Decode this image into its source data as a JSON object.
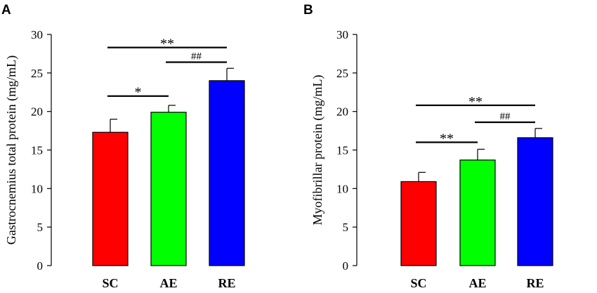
{
  "chart_data": [
    {
      "panel": "A",
      "type": "bar",
      "ylabel": "Gastrocnemius total protein (mg/mL)",
      "xlabel": "",
      "ylim": [
        0,
        30
      ],
      "yticks": [
        0,
        5,
        10,
        15,
        20,
        25,
        30
      ],
      "categories": [
        "SC",
        "AE",
        "RE"
      ],
      "values": [
        17.3,
        19.9,
        24.0
      ],
      "errors": [
        1.7,
        0.9,
        1.6
      ],
      "colors": [
        "#ff0000",
        "#00ff00",
        "#0000ff"
      ],
      "significance": [
        {
          "from": "SC",
          "to": "AE",
          "label": "*",
          "y": 22
        },
        {
          "from": "AE",
          "to": "RE",
          "label": "##",
          "y": 26.4
        },
        {
          "from": "SC",
          "to": "RE",
          "label": "**",
          "y": 28.3
        }
      ]
    },
    {
      "panel": "B",
      "type": "bar",
      "ylabel": "Myofibrillar protein (mg/mL)",
      "xlabel": "",
      "ylim": [
        0,
        30
      ],
      "yticks": [
        0,
        5,
        10,
        15,
        20,
        25,
        30
      ],
      "categories": [
        "SC",
        "AE",
        "RE"
      ],
      "values": [
        10.9,
        13.7,
        16.6
      ],
      "errors": [
        1.2,
        1.4,
        1.2
      ],
      "colors": [
        "#ff0000",
        "#00ff00",
        "#0000ff"
      ],
      "significance": [
        {
          "from": "SC",
          "to": "AE",
          "label": "**",
          "y": 16
        },
        {
          "from": "AE",
          "to": "RE",
          "label": "##",
          "y": 18.6
        },
        {
          "from": "SC",
          "to": "RE",
          "label": "**",
          "y": 20.8
        }
      ]
    }
  ]
}
